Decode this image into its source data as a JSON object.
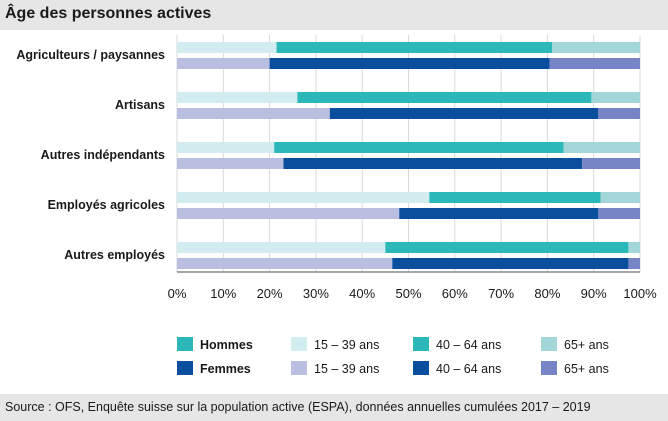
{
  "chart_data": {
    "type": "bar",
    "orientation": "horizontal",
    "stacked": true,
    "normalized_percent": true,
    "title": "Âge des personnes actives",
    "source": "Source : OFS, Enquête suisse sur la population active (ESPA), données annuelles cumulées 2017 – 2019",
    "categories": [
      "Agriculteurs / paysannes",
      "Artisans",
      "Autres indépendants",
      "Employés agricoles",
      "Autres employés"
    ],
    "segments": [
      "15 – 39 ans",
      "40 – 64 ans",
      "65+ ans"
    ],
    "groups": [
      {
        "name": "Hommes",
        "colors": [
          "#d3ecef",
          "#2cb8b8",
          "#a3d6d8"
        ],
        "values": [
          [
            21.5,
            59.5,
            19.0
          ],
          [
            26.0,
            63.5,
            10.5
          ],
          [
            21.0,
            62.5,
            16.5
          ],
          [
            54.5,
            37.0,
            8.5
          ],
          [
            45.0,
            52.5,
            2.5
          ]
        ]
      },
      {
        "name": "Femmes",
        "colors": [
          "#babfe2",
          "#0a4f9e",
          "#7785c6"
        ],
        "values": [
          [
            20.0,
            60.5,
            19.5
          ],
          [
            33.0,
            58.0,
            9.0
          ],
          [
            23.0,
            64.5,
            12.5
          ],
          [
            48.0,
            43.0,
            9.0
          ],
          [
            46.5,
            51.0,
            2.5
          ]
        ]
      }
    ],
    "x_ticks": [
      "0%",
      "10%",
      "20%",
      "30%",
      "40%",
      "50%",
      "60%",
      "70%",
      "80%",
      "90%",
      "100%"
    ],
    "xlim": [
      0,
      100
    ],
    "legend": {
      "position": "bottom",
      "rows": [
        {
          "label": "Hommes",
          "items": [
            "15 – 39 ans",
            "40 – 64 ans",
            "65+ ans"
          ]
        },
        {
          "label": "Femmes",
          "items": [
            "15 – 39 ans",
            "40 – 64 ans",
            "65+ ans"
          ]
        }
      ]
    }
  }
}
